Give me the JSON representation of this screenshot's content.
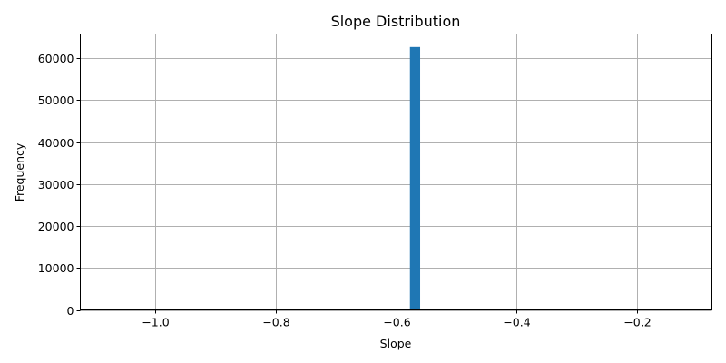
{
  "chart_data": {
    "type": "bar",
    "title": "Slope Distribution",
    "xlabel": "Slope",
    "ylabel": "Frequency",
    "xlim": [
      -1.125,
      -0.075
    ],
    "ylim": [
      0,
      65800
    ],
    "x_ticks": [
      -1.0,
      -0.8,
      -0.6,
      -0.4,
      -0.2
    ],
    "x_tick_labels": [
      "−1.0",
      "−0.8",
      "−0.6",
      "−0.4",
      "−0.2"
    ],
    "y_ticks": [
      0,
      10000,
      20000,
      30000,
      40000,
      50000,
      60000
    ],
    "y_tick_labels": [
      "0",
      "10000",
      "20000",
      "30000",
      "40000",
      "50000",
      "60000"
    ],
    "grid": true,
    "bars": [
      {
        "x_start": -0.577,
        "x_end": -0.56,
        "value": 62700
      }
    ],
    "bar_color": "#1f77b4"
  }
}
